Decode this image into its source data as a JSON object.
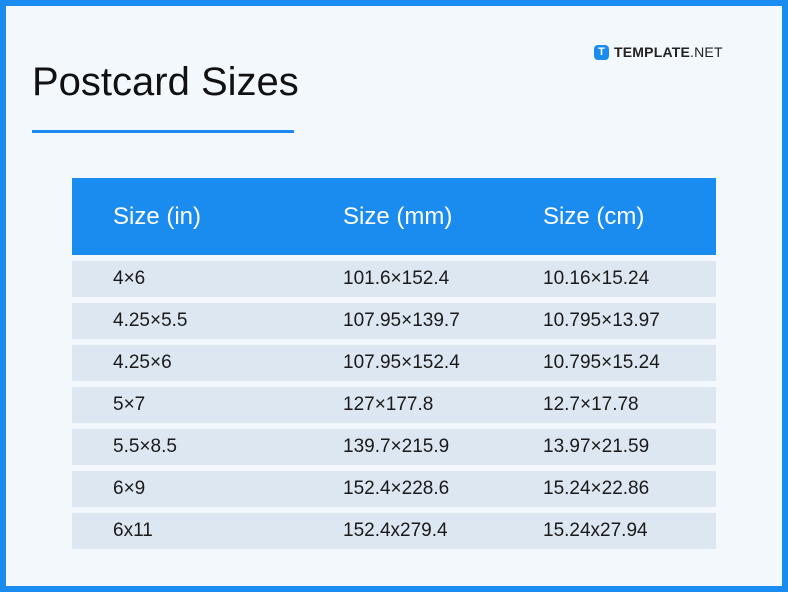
{
  "title": "Postcard Sizes",
  "logo": {
    "brand": "TEMPLATE",
    "suffix": ".NET",
    "mark": "T"
  },
  "colors": {
    "accent": "#1a8bef",
    "row_bg": "#dde7f1",
    "background": "#f3f8fd"
  },
  "table": {
    "headers": [
      "Size (in)",
      "Size (mm)",
      "Size (cm)"
    ],
    "rows": [
      [
        "4×6",
        "101.6×152.4",
        "10.16×15.24"
      ],
      [
        "4.25×5.5",
        "107.95×139.7",
        "10.795×13.97"
      ],
      [
        "4.25×6",
        "107.95×152.4",
        "10.795×15.24"
      ],
      [
        "5×7",
        "127×177.8",
        "12.7×17.78"
      ],
      [
        "5.5×8.5",
        "139.7×215.9",
        "13.97×21.59"
      ],
      [
        "6×9",
        "152.4×228.6",
        "15.24×22.86"
      ],
      [
        "6x11",
        "152.4x279.4",
        "15.24x27.94"
      ]
    ]
  }
}
